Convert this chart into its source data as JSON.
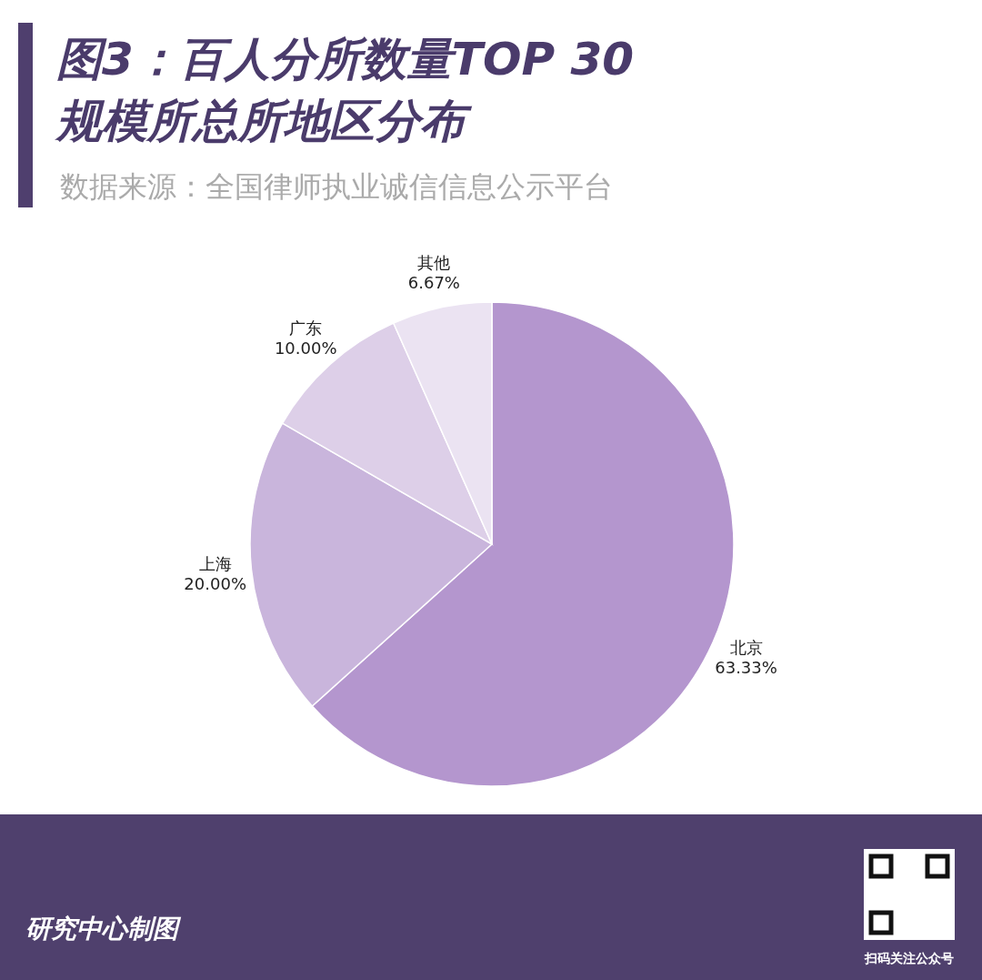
{
  "chart_data": {
    "type": "pie",
    "title": "图3：百人分所数量TOP 30\n规模所总所地区分布",
    "categories": [
      "北京",
      "上海",
      "广东",
      "其他"
    ],
    "values": [
      63.33,
      20.0,
      10.0,
      6.67
    ],
    "colors": [
      "#b496ce",
      "#c9b5dc",
      "#ddcfe8",
      "#ebe3f2"
    ],
    "value_labels": [
      "63.33%",
      "20.00%",
      "10.00%",
      "6.67%"
    ],
    "annotations": [
      "数据来源：全国律师执业诚信信息公示平台",
      "研究中心制图",
      "扫码关注公众号"
    ]
  }
}
